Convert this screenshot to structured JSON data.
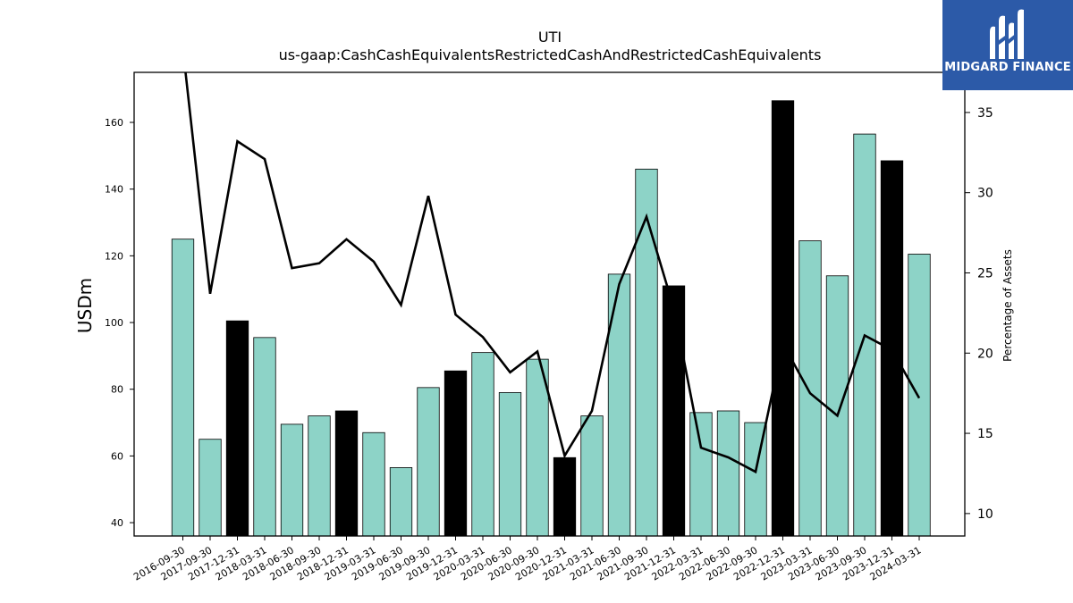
{
  "title": "UTI",
  "subtitle": "us-gaap:CashCashEquivalentsRestrictedCashAndRestrictedCashEquivalents",
  "logo": {
    "text": "MIDGARD FINANCE",
    "icon": "midgard-logo-icon",
    "background": "#2c5aa8"
  },
  "colors": {
    "bar_regular": "#8dd3c7",
    "bar_highlight": "#000000",
    "line": "#000000"
  },
  "chart_data": {
    "type": "bar",
    "categories": [
      "2016-09-30",
      "2017-09-30",
      "2017-12-31",
      "2018-03-31",
      "2018-06-30",
      "2018-09-30",
      "2018-12-31",
      "2019-03-31",
      "2019-06-30",
      "2019-09-30",
      "2019-12-31",
      "2020-03-31",
      "2020-06-30",
      "2020-09-30",
      "2020-12-31",
      "2021-03-31",
      "2021-06-30",
      "2021-09-30",
      "2021-12-31",
      "2022-03-31",
      "2022-06-30",
      "2022-09-30",
      "2022-12-31",
      "2023-03-31",
      "2023-06-30",
      "2023-09-30",
      "2023-12-31",
      "2024-03-31"
    ],
    "series": [
      {
        "axis": "left",
        "values": [
          125,
          65,
          100.5,
          95.5,
          69.5,
          72,
          73.5,
          67,
          56.5,
          80.5,
          85.5,
          91,
          79,
          89,
          59.5,
          72,
          114.5,
          146,
          111,
          73,
          73.5,
          70,
          166.5,
          124.5,
          114,
          156.5,
          148.5,
          120.5
        ],
        "highlight": [
          false,
          false,
          true,
          false,
          false,
          false,
          true,
          false,
          false,
          false,
          true,
          false,
          false,
          false,
          true,
          false,
          false,
          false,
          true,
          false,
          false,
          false,
          true,
          false,
          false,
          false,
          true,
          false
        ]
      },
      {
        "type": "line",
        "axis": "right",
        "values": [
          39,
          23.7,
          33.2,
          32.1,
          25.3,
          25.6,
          27.1,
          25.7,
          23.0,
          29.8,
          22.4,
          21.0,
          18.8,
          20.1,
          13.6,
          16.4,
          24.3,
          28.5,
          22.8,
          14.1,
          13.5,
          12.6,
          20.6,
          17.5,
          16.1,
          21.1,
          20.2,
          17.2
        ]
      }
    ],
    "ylabel": "USDm",
    "ylabel_right": "Percentage of Assets",
    "ylim": [
      36,
      175
    ],
    "ylim_right": [
      8.6,
      37.5
    ],
    "yticks": [
      40,
      60,
      80,
      100,
      120,
      140,
      160
    ],
    "yticks_right": [
      10,
      15,
      20,
      25,
      30,
      35
    ],
    "grid": false
  }
}
